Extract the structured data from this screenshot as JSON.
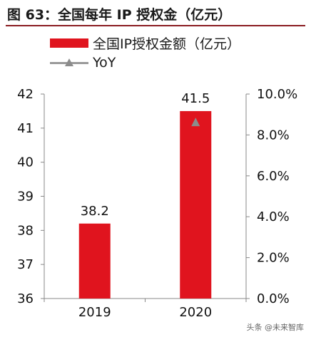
{
  "title": "图 63：全国每年 IP 授权金（亿元）",
  "legend": {
    "bar_label": "全国IP授权金额（亿元）",
    "line_label": "YoY"
  },
  "watermark": "头条 @未来智库",
  "colors": {
    "bar": "#e0141e",
    "line_marker": "#8c8c8c",
    "title_rule": "#8a1c21"
  },
  "chart_data": {
    "type": "bar",
    "categories": [
      "2019",
      "2020"
    ],
    "series": [
      {
        "name": "全国IP授权金额（亿元）",
        "type": "bar",
        "axis": "left",
        "values": [
          38.2,
          41.5
        ],
        "data_labels": [
          "38.2",
          "41.5"
        ]
      },
      {
        "name": "YoY",
        "type": "line",
        "axis": "right",
        "marker": "triangle",
        "values": [
          null,
          0.086
        ]
      }
    ],
    "y_left": {
      "min": 36,
      "max": 42,
      "ticks": [
        "36",
        "37",
        "38",
        "39",
        "40",
        "41",
        "42"
      ]
    },
    "y_right": {
      "min": 0,
      "max": 0.1,
      "ticks": [
        "0.0%",
        "2.0%",
        "4.0%",
        "6.0%",
        "8.0%",
        "10.0%"
      ]
    },
    "grid": false,
    "legend_position": "top-left"
  }
}
